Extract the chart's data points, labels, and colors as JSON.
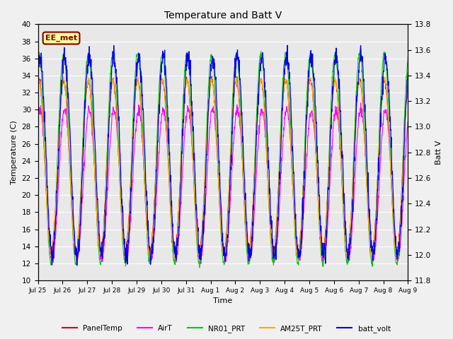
{
  "title": "Temperature and Batt V",
  "xlabel": "Time",
  "ylabel_left": "Temperature (C)",
  "ylabel_right": "Batt V",
  "ylim_left": [
    10,
    40
  ],
  "ylim_right": [
    11.8,
    13.8
  ],
  "bg_color": "#e8e8e8",
  "legend_label": "EE_met",
  "legend_box_color": "#ffff99",
  "legend_box_edge": "#800000",
  "x_ticks": [
    "Jul 25",
    "Jul 26",
    "Jul 27",
    "Jul 28",
    "Jul 29",
    "Jul 30",
    "Jul 31",
    "Aug 1",
    "Aug 2",
    "Aug 3",
    "Aug 4",
    "Aug 5",
    "Aug 6",
    "Aug 7",
    "Aug 8",
    "Aug 9"
  ],
  "series_colors": {
    "PanelTemp": "#dd0000",
    "AirT": "#ff00ff",
    "NR01_PRT": "#00cc00",
    "AM25T_PRT": "#ffaa00",
    "batt_volt": "#0000ee"
  },
  "n_days": 15,
  "pts_per_day": 96
}
